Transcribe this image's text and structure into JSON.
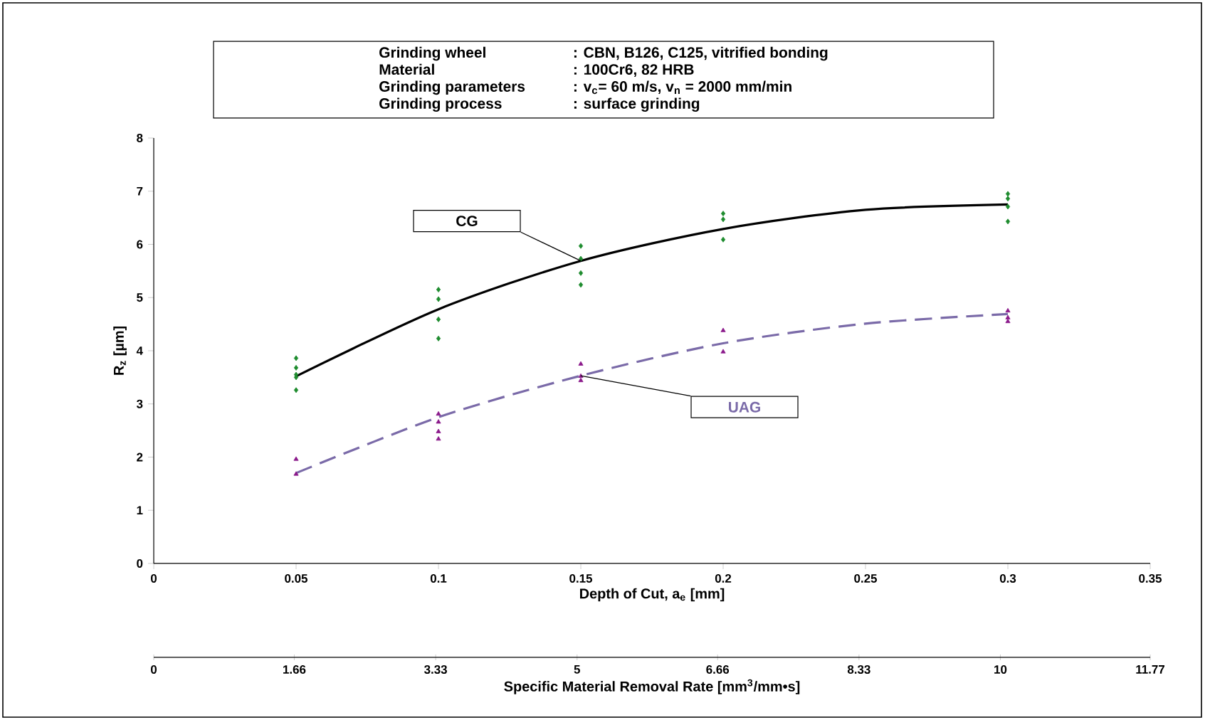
{
  "chart_data": {
    "type": "scatter",
    "annotations": [
      "Grinding wheel",
      ": CBN, B126, C125, vitrified bonding",
      "Material",
      ": 100Cr6, 82 HRB",
      "Grinding parameters",
      ": v$_{c}$= 60 m/s, v$_{n}$ = 2000 mm/min",
      "Grinding process",
      ": surface grinding"
    ],
    "xlabel": "Depth of Cut, a$_{e}$ [mm]",
    "ylabel": "R$_{z}$ [µm]",
    "x2label": "Specific Material Removal Rate [mm$^{3}$/mm•s]",
    "xlim": [
      0,
      0.35
    ],
    "xticks": [
      0,
      0.05,
      0.1,
      0.15,
      0.2,
      0.25,
      0.3,
      0.35
    ],
    "ylim": [
      0,
      8
    ],
    "yticks": [
      0,
      1,
      2,
      3,
      4,
      5,
      6,
      7,
      8
    ],
    "x2lim": [
      0,
      11.77
    ],
    "x2ticks": [
      0,
      1.66,
      3.33,
      5,
      6.66,
      8.33,
      10,
      11.77
    ],
    "series": [
      {
        "type": "scatter",
        "color": "#1e8c2e",
        "marker": "diamond",
        "x": [
          0.05,
          0.05,
          0.05,
          0.05,
          0.05,
          0.1,
          0.1,
          0.1,
          0.1,
          0.15,
          0.15,
          0.15,
          0.15,
          0.2,
          0.2,
          0.2,
          0.3,
          0.3,
          0.3,
          0.3
        ],
        "values": [
          3.86,
          3.68,
          3.55,
          3.5,
          3.26,
          5.15,
          4.97,
          4.59,
          4.23,
          5.97,
          5.73,
          5.46,
          5.24,
          6.58,
          6.47,
          6.09,
          6.95,
          6.86,
          6.71,
          6.43
        ]
      },
      {
        "type": "scatter",
        "color": "#8b1a8b",
        "marker": "triangle",
        "x": [
          0.05,
          0.05,
          0.1,
          0.1,
          0.1,
          0.1,
          0.15,
          0.15,
          0.15,
          0.2,
          0.2,
          0.3,
          0.3,
          0.3
        ],
        "values": [
          1.96,
          1.68,
          2.81,
          2.66,
          2.48,
          2.34,
          3.75,
          3.52,
          3.44,
          4.38,
          3.98,
          4.75,
          4.62,
          4.55
        ]
      },
      {
        "type": "line",
        "name": "CG",
        "color": "#000000",
        "line_style": "solid",
        "marker": "none",
        "x": [
          0.05,
          0.1,
          0.15,
          0.2,
          0.25,
          0.3
        ],
        "values": [
          3.52,
          4.78,
          5.69,
          6.29,
          6.65,
          6.75
        ]
      },
      {
        "type": "line",
        "name": "UAG",
        "color": "#7a6aa8",
        "line_style": "dashed",
        "marker": "none",
        "x": [
          0.05,
          0.1,
          0.15,
          0.2,
          0.25,
          0.3
        ],
        "values": [
          1.7,
          2.75,
          3.53,
          4.14,
          4.51,
          4.69
        ]
      }
    ]
  }
}
